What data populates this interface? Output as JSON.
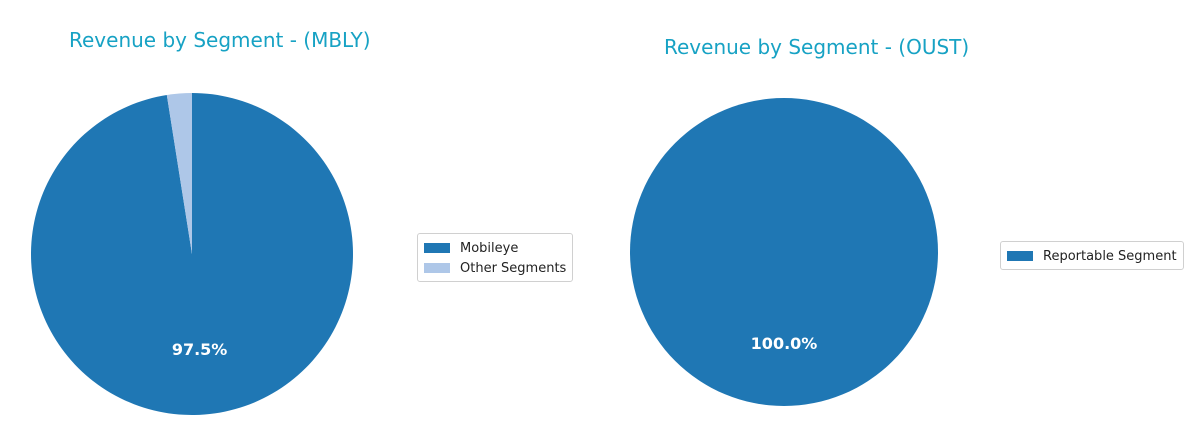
{
  "chart_data": [
    {
      "type": "pie",
      "title": "Revenue by Segment - (MBLY)",
      "categories": [
        "Mobileye",
        "Other Segments"
      ],
      "values": [
        97.5,
        2.5
      ],
      "labels": [
        "97.5%",
        ""
      ],
      "colors": [
        "#1f77b4",
        "#aec7e8"
      ],
      "start_angle_deg": 90,
      "direction": "clockwise",
      "legend_placement": "right"
    },
    {
      "type": "pie",
      "title": "Revenue by Segment - (OUST)",
      "categories": [
        "Reportable Segment"
      ],
      "values": [
        100.0
      ],
      "labels": [
        "100.0%"
      ],
      "colors": [
        "#1f77b4"
      ],
      "start_angle_deg": 90,
      "direction": "clockwise",
      "legend_placement": "right"
    }
  ]
}
